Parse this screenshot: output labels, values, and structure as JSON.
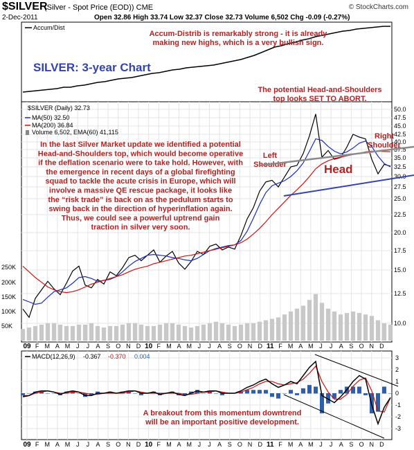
{
  "header": {
    "symbol": "$SILVER",
    "description": "(Silver - Spot Price (EOD)) CME",
    "date": "2-Dec-2011",
    "ohlc": "Open 32.86  High 33.74  Low 32.37  Close 32.73  Volume 6,502  Chg -0.09 (-0.27%)",
    "watermark": "© StockCharts.com"
  },
  "colors": {
    "red_text": "#b22222",
    "blue_title": "#3344aa",
    "price": "#000000",
    "ma50": "#1a2bbf",
    "ma200": "#d01010",
    "volume": "#c8c8c8",
    "macd_hist": "#2f5fa8"
  },
  "panel1": {
    "legend": "Accum/Dist",
    "annotation_lines": [
      "Accum-Distrib is remarkably strong - it is already",
      "making new highs, which is a very bullish sign."
    ],
    "chart_title": "SILVER: 3-year Chart",
    "chart_data": {
      "type": "line",
      "title": "",
      "series": [
        {
          "name": "Accum/Dist",
          "values": [
            5,
            6,
            7,
            8,
            9,
            10,
            12,
            12,
            14,
            15,
            17,
            19,
            20,
            22,
            24,
            25,
            26,
            28,
            30,
            32,
            33,
            35,
            37,
            38,
            40,
            41,
            42,
            43,
            44,
            46,
            48,
            50,
            52,
            55,
            58,
            62,
            66,
            70,
            72,
            75,
            77,
            80,
            82,
            85,
            87,
            89,
            91,
            93,
            94,
            96,
            97,
            98,
            99,
            100,
            100
          ]
        }
      ]
    }
  },
  "panel2": {
    "legend_price": "$SILVER (Daily) 32.73",
    "legend_ma50": "MA(50) 32.50",
    "legend_ma200": "MA(200) 36.84",
    "legend_volume": "Volume 6,502, EMA(60) 41,115",
    "hs_note": [
      "The potential Head-and-Shoulders",
      "top looks SET TO ABORT."
    ],
    "label_left_shoulder": [
      "Left",
      "Shoulder"
    ],
    "label_right_shoulder": [
      "Right",
      "Shoulder"
    ],
    "label_head": "Head",
    "main_text": [
      "In the last Silver Market update we identified a potential",
      "Head-and-Shoulders top, which would become operative",
      "if the deflation scenario were to take hold. However, with",
      "the emergence in recent days of a global firefighting",
      "squad to tackle the acute crisis in Europe, which will",
      "involve a massive QE rescue package, it looks like",
      "the “risk trade” is back on as the pedulum starts to",
      "swing back in the direction of hyperinflation again.",
      "Thus, we could see a powerful uptrend gain",
      "traction in silver very soon."
    ],
    "chart_data": {
      "type": "line",
      "title": "",
      "y_ticks": [
        50.0,
        47.5,
        45.0,
        42.5,
        40.0,
        37.5,
        35.0,
        32.5,
        30.0,
        27.5,
        25.0,
        22.5,
        20.0,
        17.5,
        15.0,
        12.5,
        10.0
      ],
      "volume_ticks": [
        "250K",
        "200K",
        "150K",
        "100K",
        "50K"
      ],
      "series": [
        {
          "name": "$SILVER (Daily)",
          "values": [
            11.2,
            10.5,
            12.1,
            12.9,
            13.8,
            13.0,
            12.4,
            13.6,
            14.9,
            15.5,
            13.4,
            13.1,
            14.0,
            13.5,
            14.8,
            14.4,
            15.3,
            16.6,
            16.9,
            16.2,
            16.9,
            17.6,
            16.0,
            16.8,
            17.4,
            15.9,
            15.1,
            16.1,
            17.4,
            17.0,
            18.1,
            18.4,
            17.6,
            18.0,
            17.7,
            19.6,
            21.9,
            23.6,
            26.6,
            28.7,
            29.1,
            27.5,
            29.9,
            32.5,
            32.9,
            36.3,
            42.0,
            48.6,
            35.2,
            37.2,
            34.6,
            35.1,
            38.3,
            42.5,
            41.6,
            41.0,
            34.6,
            30.7,
            33.2,
            32.7
          ]
        },
        {
          "name": "MA(50)",
          "values": [
            12.0,
            11.8,
            11.6,
            11.7,
            12.2,
            12.7,
            12.9,
            13.1,
            13.6,
            14.2,
            14.3,
            14.1,
            13.8,
            13.9,
            14.0,
            14.3,
            14.8,
            15.5,
            16.1,
            16.5,
            16.9,
            17.0,
            16.9,
            16.8,
            16.6,
            16.5,
            16.3,
            16.2,
            16.5,
            17.0,
            17.5,
            17.8,
            18.0,
            18.2,
            18.3,
            18.9,
            20.2,
            22.0,
            24.1,
            26.3,
            27.8,
            28.4,
            29.0,
            30.0,
            31.5,
            33.6,
            37.0,
            41.0,
            40.5,
            38.5,
            37.0,
            36.2,
            36.8,
            38.0,
            39.6,
            40.3,
            38.5,
            35.5,
            33.4,
            32.5
          ]
        },
        {
          "name": "MA(200)",
          "values": [
            15.5,
            14.8,
            14.2,
            13.7,
            13.2,
            12.9,
            12.7,
            12.6,
            12.7,
            12.9,
            13.2,
            13.5,
            13.7,
            13.9,
            14.1,
            14.3,
            14.5,
            14.8,
            15.1,
            15.3,
            15.5,
            15.8,
            16.0,
            16.2,
            16.4,
            16.6,
            16.8,
            16.9,
            17.1,
            17.3,
            17.5,
            17.7,
            17.9,
            18.1,
            18.3,
            18.6,
            19.1,
            19.8,
            20.6,
            21.5,
            22.5,
            23.5,
            24.5,
            25.7,
            26.9,
            28.3,
            30.0,
            32.0,
            33.3,
            34.2,
            34.8,
            35.2,
            35.6,
            36.0,
            36.4,
            36.8,
            37.0,
            37.0,
            36.9,
            36.84
          ]
        },
        {
          "name": "Volume",
          "values": [
            40,
            45,
            50,
            55,
            60,
            60,
            55,
            50,
            50,
            55,
            55,
            60,
            50,
            45,
            50,
            50,
            55,
            60,
            60,
            55,
            50,
            50,
            55,
            60,
            60,
            55,
            50,
            45,
            50,
            55,
            60,
            65,
            60,
            55,
            50,
            55,
            60,
            60,
            65,
            70,
            75,
            80,
            90,
            100,
            110,
            120,
            140,
            160,
            130,
            110,
            100,
            90,
            95,
            100,
            95,
            90,
            85,
            70,
            60,
            55
          ]
        }
      ]
    }
  },
  "panel3": {
    "legend_label": "MACD(12,26,9)",
    "legend_val1": "-0.367",
    "legend_val2": "-0.370",
    "legend_val3": "0.004",
    "y_ticks": [
      "3",
      "2",
      "1",
      "0",
      "-1",
      "-2",
      "-3"
    ],
    "annotation_lines": [
      "A breakout from this momentum downtrend",
      "will be an important positive development."
    ],
    "chart_data": {
      "type": "line",
      "title": "",
      "series": [
        {
          "name": "MACD",
          "values": [
            -0.3,
            -0.2,
            0.1,
            0.2,
            0.2,
            0.1,
            -0.1,
            0.1,
            0.2,
            0.1,
            -0.2,
            -0.2,
            0.0,
            0.0,
            0.1,
            0.0,
            0.1,
            0.2,
            0.2,
            0.0,
            0.0,
            0.1,
            -0.1,
            0.0,
            0.1,
            -0.1,
            -0.2,
            0.0,
            0.2,
            0.1,
            0.2,
            0.2,
            0.0,
            0.0,
            0.0,
            0.2,
            0.5,
            0.7,
            1.0,
            1.2,
            0.8,
            0.5,
            0.7,
            1.0,
            0.8,
            1.5,
            2.2,
            2.7,
            -0.2,
            -0.5,
            -0.8,
            -0.3,
            0.3,
            1.0,
            1.5,
            1.2,
            -1.0,
            -2.6,
            -1.2,
            -0.37
          ]
        },
        {
          "name": "Signal",
          "values": [
            -0.2,
            -0.2,
            0.0,
            0.1,
            0.2,
            0.1,
            0.0,
            0.0,
            0.1,
            0.1,
            0.0,
            -0.1,
            -0.1,
            0.0,
            0.0,
            0.0,
            0.0,
            0.1,
            0.2,
            0.1,
            0.0,
            0.0,
            0.0,
            0.0,
            0.0,
            0.0,
            -0.1,
            -0.1,
            0.0,
            0.1,
            0.1,
            0.2,
            0.1,
            0.0,
            0.0,
            0.1,
            0.3,
            0.5,
            0.8,
            1.0,
            1.0,
            0.8,
            0.7,
            0.8,
            0.9,
            1.2,
            1.7,
            2.3,
            1.0,
            0.1,
            -0.5,
            -0.5,
            -0.1,
            0.6,
            1.1,
            1.3,
            0.2,
            -1.5,
            -1.6,
            -0.37
          ]
        }
      ]
    }
  },
  "x_axis_labels": [
    "09",
    "F",
    "M",
    "A",
    "M",
    "J",
    "J",
    "A",
    "S",
    "O",
    "N",
    "D",
    "10",
    "F",
    "M",
    "A",
    "M",
    "J",
    "J",
    "A",
    "S",
    "O",
    "N",
    "D",
    "11",
    "F",
    "M",
    "A",
    "M",
    "J",
    "J",
    "A",
    "S",
    "O",
    "N",
    "D"
  ]
}
